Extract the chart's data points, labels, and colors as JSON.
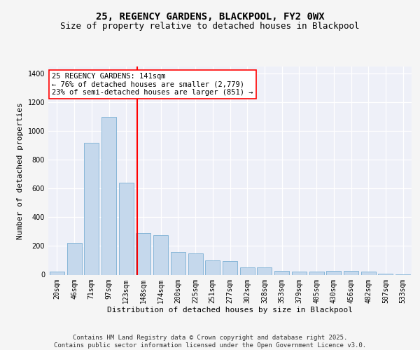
{
  "title": "25, REGENCY GARDENS, BLACKPOOL, FY2 0WX",
  "subtitle": "Size of property relative to detached houses in Blackpool",
  "xlabel": "Distribution of detached houses by size in Blackpool",
  "ylabel": "Number of detached properties",
  "categories": [
    "20sqm",
    "46sqm",
    "71sqm",
    "97sqm",
    "123sqm",
    "148sqm",
    "174sqm",
    "200sqm",
    "225sqm",
    "251sqm",
    "277sqm",
    "302sqm",
    "328sqm",
    "353sqm",
    "379sqm",
    "405sqm",
    "430sqm",
    "456sqm",
    "482sqm",
    "507sqm",
    "533sqm"
  ],
  "values": [
    20,
    220,
    920,
    1100,
    640,
    290,
    275,
    160,
    150,
    100,
    95,
    50,
    50,
    25,
    20,
    20,
    25,
    25,
    20,
    5,
    3
  ],
  "bar_color": "#c5d8ec",
  "bar_edge_color": "#7aafd4",
  "bg_color": "#eef0f8",
  "grid_color": "#ffffff",
  "vline_color": "red",
  "vline_pos": 4.65,
  "annotation_text": "25 REGENCY GARDENS: 141sqm\n← 76% of detached houses are smaller (2,779)\n23% of semi-detached houses are larger (851) →",
  "annotation_box_color": "white",
  "annotation_box_edge": "red",
  "ylim": [
    0,
    1450
  ],
  "yticks": [
    0,
    200,
    400,
    600,
    800,
    1000,
    1200,
    1400
  ],
  "footer": "Contains HM Land Registry data © Crown copyright and database right 2025.\nContains public sector information licensed under the Open Government Licence v3.0.",
  "title_fontsize": 10,
  "subtitle_fontsize": 9,
  "axis_label_fontsize": 8,
  "tick_fontsize": 7,
  "annotation_fontsize": 7.5,
  "footer_fontsize": 6.5,
  "fig_bg": "#f5f5f5"
}
